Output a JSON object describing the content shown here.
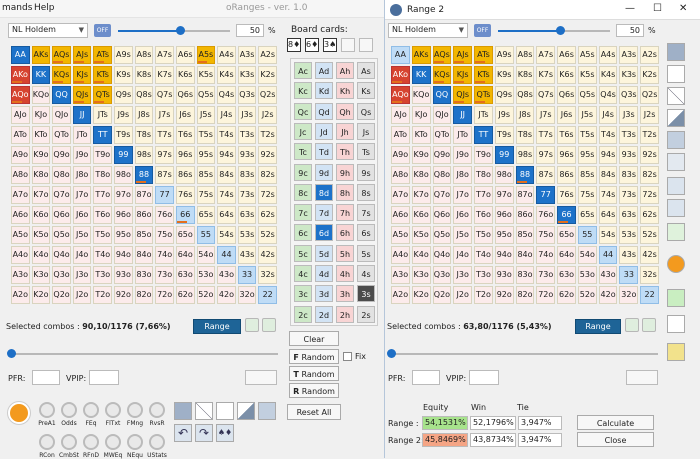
{
  "app": {
    "title": "oRanges - ver. 1.0",
    "menu": [
      "mands",
      "Help"
    ]
  },
  "left": {
    "game_select": "NL Holdem",
    "off_label": "OFF",
    "pct_value": "50",
    "pct_sign": "%",
    "slider_level": 0.55,
    "selected_label": "Selected combos : ",
    "selected_value": "90,10/1176 (7,66%)",
    "range_button": "Range",
    "pfr_label": "PFR:",
    "vpip_label": "VPIP:",
    "stats": [
      "PreA1",
      "Odds",
      "FEq",
      "FlTxt",
      "FMng",
      "RvsR",
      "RCon",
      "CmbSt",
      "RFnD",
      "MWEq",
      "NEqu",
      "UStats"
    ]
  },
  "board": {
    "label": "Board cards:",
    "cards": [
      "8♦",
      "6♦",
      "3♠"
    ],
    "columns": [
      [
        "Ac",
        "Kc",
        "Qc",
        "Jc",
        "Tc",
        "9c",
        "8c",
        "7c",
        "6c",
        "5c",
        "4c",
        "3c",
        "2c"
      ],
      [
        "Ad",
        "Kd",
        "Qd",
        "Jd",
        "Td",
        "9d",
        "8d",
        "7d",
        "6d",
        "5d",
        "4d",
        "3d",
        "2d"
      ],
      [
        "Ah",
        "Kh",
        "Qh",
        "Jh",
        "Th",
        "9h",
        "8h",
        "7h",
        "6h",
        "5h",
        "4h",
        "3h",
        "2h"
      ],
      [
        "As",
        "Ks",
        "Qs",
        "Js",
        "Ts",
        "9s",
        "8s",
        "7s",
        "6s",
        "5s",
        "4s",
        "3s",
        "2s"
      ]
    ],
    "clear": "Clear",
    "random_buttons": [
      {
        "letter": "F",
        "label": "Random"
      },
      {
        "letter": "T",
        "label": "Random"
      },
      {
        "letter": "R",
        "label": "Random"
      }
    ],
    "fix_label": "Fix",
    "reset": "Reset All"
  },
  "range2": {
    "title": "Range 2",
    "game_select": "NL Holdem",
    "off_label": "OFF",
    "pct_value": "50",
    "pct_sign": "%",
    "slider_level": 0.55,
    "selected_label": "Selected combos : ",
    "selected_value": "63,80/1176 (5,43%)",
    "range_button": "Range",
    "pfr_label": "PFR:",
    "vpip_label": "VPIP:",
    "equity": {
      "headers": [
        "Equity",
        "Win",
        "Tie"
      ],
      "rows": [
        {
          "label": "Range :",
          "equity": "54,1531%",
          "win": "52,1796%",
          "tie": "3,947%"
        },
        {
          "label": "Range 2:",
          "equity": "45,8469%",
          "win": "43,8734%",
          "tie": "3,947%"
        }
      ],
      "calculate": "Calculate",
      "close": "Close"
    }
  },
  "hands": [
    [
      "AA",
      "AKs",
      "AQs",
      "AJs",
      "ATs",
      "A9s",
      "A8s",
      "A7s",
      "A6s",
      "A5s",
      "A4s",
      "A3s",
      "A2s"
    ],
    [
      "AKo",
      "KK",
      "KQs",
      "KJs",
      "KTs",
      "K9s",
      "K8s",
      "K7s",
      "K6s",
      "K5s",
      "K4s",
      "K3s",
      "K2s"
    ],
    [
      "AQo",
      "KQo",
      "QQ",
      "QJs",
      "QTs",
      "Q9s",
      "Q8s",
      "Q7s",
      "Q6s",
      "Q5s",
      "Q4s",
      "Q3s",
      "Q2s"
    ],
    [
      "AJo",
      "KJo",
      "QJo",
      "JJ",
      "JTs",
      "J9s",
      "J8s",
      "J7s",
      "J6s",
      "J5s",
      "J4s",
      "J3s",
      "J2s"
    ],
    [
      "ATo",
      "KTo",
      "QTo",
      "JTo",
      "TT",
      "T9s",
      "T8s",
      "T7s",
      "T6s",
      "T5s",
      "T4s",
      "T3s",
      "T2s"
    ],
    [
      "A9o",
      "K9o",
      "Q9o",
      "J9o",
      "T9o",
      "99",
      "98s",
      "97s",
      "96s",
      "95s",
      "94s",
      "93s",
      "92s"
    ],
    [
      "A8o",
      "K8o",
      "Q8o",
      "J8o",
      "T8o",
      "98o",
      "88",
      "87s",
      "86s",
      "85s",
      "84s",
      "83s",
      "82s"
    ],
    [
      "A7o",
      "K7o",
      "Q7o",
      "J7o",
      "T7o",
      "97o",
      "87o",
      "77",
      "76s",
      "75s",
      "74s",
      "73s",
      "72s"
    ],
    [
      "A6o",
      "K6o",
      "Q6o",
      "J6o",
      "T6o",
      "96o",
      "86o",
      "76o",
      "66",
      "65s",
      "64s",
      "63s",
      "62s"
    ],
    [
      "A5o",
      "K5o",
      "Q5o",
      "J5o",
      "T5o",
      "95o",
      "85o",
      "75o",
      "65o",
      "55",
      "54s",
      "53s",
      "52s"
    ],
    [
      "A4o",
      "K4o",
      "Q4o",
      "J4o",
      "T4o",
      "94o",
      "84o",
      "74o",
      "64o",
      "54o",
      "44",
      "43s",
      "42s"
    ],
    [
      "A3o",
      "K3o",
      "Q3o",
      "J3o",
      "T3o",
      "93o",
      "83o",
      "73o",
      "63o",
      "53o",
      "43o",
      "33",
      "32s"
    ],
    [
      "A2o",
      "K2o",
      "Q2o",
      "J2o",
      "T2o",
      "92o",
      "82o",
      "72o",
      "62o",
      "52o",
      "42o",
      "32o",
      "22"
    ]
  ],
  "colors": {
    "yellow": "#f2b600",
    "red": "#d6432f",
    "blue": "#1d72c9",
    "light": "#bfdcf6",
    "accent": "#1e6497"
  }
}
